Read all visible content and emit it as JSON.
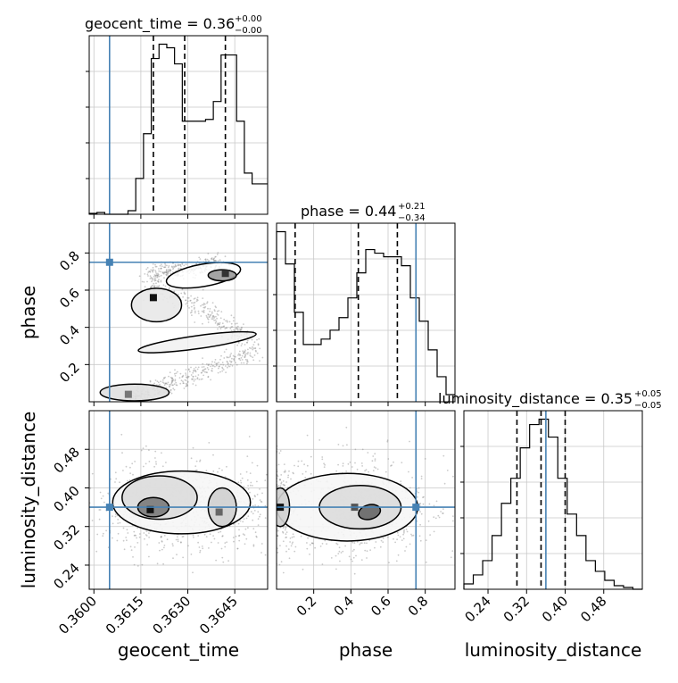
{
  "chart_data": {
    "type": "corner",
    "parameters": [
      "geocent_time",
      "phase",
      "luminosity_distance"
    ],
    "titles": [
      {
        "base": "geocent_time = 0.36",
        "upper": "+0.00",
        "lower": "−0.00"
      },
      {
        "base": "phase = 0.44",
        "upper": "+0.21",
        "lower": "−0.34"
      },
      {
        "base": "luminosity_distance = 0.35",
        "upper": "+0.05",
        "lower": "−0.05"
      }
    ],
    "axis_labels": {
      "x": [
        "geocent_time",
        "phase",
        "luminosity_distance"
      ],
      "y": [
        "phase",
        "luminosity_distance"
      ]
    },
    "ranges": {
      "geocent_time": [
        0.35985,
        0.36555
      ],
      "phase": [
        0.0,
        0.96
      ],
      "luminosity_distance": [
        0.19,
        0.56
      ]
    },
    "ticks": {
      "geocent_time": {
        "values": [
          0.36,
          0.3615,
          0.363,
          0.3645
        ],
        "labels": [
          "0.3600",
          "0.3615",
          "0.3630",
          "0.3645"
        ]
      },
      "phase_x": {
        "values": [
          0.2,
          0.4,
          0.6,
          0.8
        ],
        "labels": [
          "0.2",
          "0.4",
          "0.6",
          "0.8"
        ]
      },
      "phase_y": {
        "values": [
          0.2,
          0.4,
          0.6,
          0.8
        ],
        "labels": [
          "0.2",
          "0.4",
          "0.6",
          "0.8"
        ]
      },
      "luminosity_distance": {
        "values": [
          0.24,
          0.32,
          0.4,
          0.48
        ],
        "labels": [
          "0.24",
          "0.32",
          "0.40",
          "0.48"
        ]
      }
    },
    "truths": {
      "geocent_time": 0.3605,
      "phase": 0.75,
      "luminosity_distance": 0.36
    },
    "quantiles": {
      "geocent_time": [
        0.3619,
        0.3629,
        0.3642
      ],
      "phase": [
        0.1,
        0.44,
        0.65
      ],
      "luminosity_distance": [
        0.3,
        0.35,
        0.4
      ]
    },
    "histograms": {
      "geocent_time": {
        "edges_range": [
          0.35985,
          0.36555
        ],
        "counts": [
          0.5,
          1,
          0,
          0,
          0,
          2,
          20,
          45,
          87,
          95,
          93,
          84,
          52,
          52,
          52,
          53,
          63,
          89,
          89,
          52,
          23,
          17,
          17
        ]
      },
      "phase": {
        "edges_range": [
          0.0,
          0.96
        ],
        "counts": [
          95,
          77,
          50,
          32,
          32,
          35,
          40,
          47,
          58,
          72,
          85,
          83,
          81,
          81,
          76,
          58,
          45,
          29,
          14,
          4
        ]
      },
      "luminosity_distance": {
        "edges_range": [
          0.19,
          0.56
        ],
        "counts": [
          3,
          8,
          16,
          30,
          48,
          62,
          79,
          92,
          95,
          85,
          62,
          42,
          30,
          16,
          10,
          5,
          2,
          1,
          0
        ]
      }
    },
    "color_truth": "#4682b4",
    "color_quantile": "#000000",
    "grid": true
  }
}
